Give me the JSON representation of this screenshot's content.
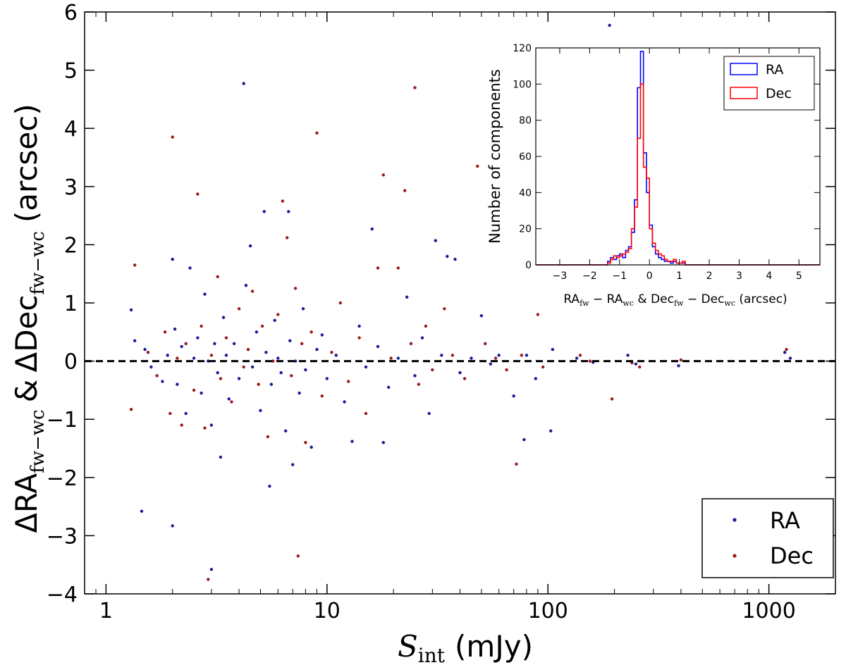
{
  "chart_data": [
    {
      "type": "scatter",
      "name": "main-scatter",
      "xscale": "log",
      "xlim": [
        0.8,
        2000
      ],
      "ylim": [
        -4,
        6
      ],
      "xticks": [
        1,
        10,
        100,
        1000
      ],
      "xtick_labels": [
        "1",
        "10",
        "100",
        "1000"
      ],
      "yticks": [
        -4,
        -3,
        -2,
        -1,
        0,
        1,
        2,
        3,
        4,
        5,
        6
      ],
      "ytick_labels": [
        "−4",
        "−3",
        "−2",
        "−1",
        "0",
        "1",
        "2",
        "3",
        "4",
        "5",
        "6"
      ],
      "xlabel_symbol": "S",
      "xlabel_sub": "int",
      "xlabel_unit": "(mJy)",
      "ylabel_ra": "ΔRA",
      "ylabel_dec": "ΔDec",
      "ylabel_sub": "fw−wc",
      "ylabel_amp": "&",
      "ylabel_unit": "(arcsec)",
      "reference_line_y": 0,
      "legend_position": "bottom-right",
      "legend": [
        "RA",
        "Dec"
      ],
      "series": [
        {
          "name": "RA",
          "color": "#1a1a99",
          "points": [
            [
              1.3,
              0.88
            ],
            [
              1.35,
              0.35
            ],
            [
              1.45,
              -2.58
            ],
            [
              1.5,
              0.2
            ],
            [
              1.6,
              -0.1
            ],
            [
              1.8,
              -0.35
            ],
            [
              1.9,
              0.1
            ],
            [
              2.0,
              -2.83
            ],
            [
              2.0,
              1.75
            ],
            [
              2.05,
              0.55
            ],
            [
              2.1,
              -0.4
            ],
            [
              2.2,
              0.25
            ],
            [
              2.3,
              -0.9
            ],
            [
              2.4,
              1.6
            ],
            [
              2.5,
              0.05
            ],
            [
              2.6,
              0.4
            ],
            [
              2.7,
              -0.55
            ],
            [
              2.8,
              1.15
            ],
            [
              2.9,
              0.0
            ],
            [
              3.0,
              -1.1
            ],
            [
              3.0,
              -3.58
            ],
            [
              3.1,
              0.3
            ],
            [
              3.2,
              -0.2
            ],
            [
              3.3,
              -1.65
            ],
            [
              3.4,
              0.75
            ],
            [
              3.5,
              0.1
            ],
            [
              3.6,
              -0.65
            ],
            [
              3.8,
              0.3
            ],
            [
              4.0,
              -0.3
            ],
            [
              4.2,
              4.77
            ],
            [
              4.3,
              1.3
            ],
            [
              4.5,
              1.98
            ],
            [
              4.6,
              -0.1
            ],
            [
              4.8,
              0.5
            ],
            [
              5.0,
              -0.85
            ],
            [
              5.2,
              2.57
            ],
            [
              5.3,
              0.15
            ],
            [
              5.5,
              -2.15
            ],
            [
              5.6,
              -0.4
            ],
            [
              5.8,
              0.7
            ],
            [
              6.0,
              0.05
            ],
            [
              6.2,
              -0.2
            ],
            [
              6.5,
              -1.2
            ],
            [
              6.7,
              2.57
            ],
            [
              6.8,
              0.35
            ],
            [
              7.0,
              -1.78
            ],
            [
              7.2,
              0.0
            ],
            [
              7.5,
              -0.55
            ],
            [
              7.8,
              0.9
            ],
            [
              8.0,
              -0.15
            ],
            [
              8.5,
              -1.48
            ],
            [
              9.0,
              0.2
            ],
            [
              9.5,
              0.45
            ],
            [
              10.0,
              -0.3
            ],
            [
              11.0,
              0.1
            ],
            [
              12.0,
              -0.7
            ],
            [
              13.0,
              -1.38
            ],
            [
              14.0,
              0.6
            ],
            [
              15.0,
              -0.1
            ],
            [
              16.0,
              2.27
            ],
            [
              17.0,
              0.25
            ],
            [
              18.0,
              -1.4
            ],
            [
              19.0,
              -0.45
            ],
            [
              21.0,
              0.05
            ],
            [
              23.0,
              1.1
            ],
            [
              25.0,
              -0.25
            ],
            [
              27.0,
              0.4
            ],
            [
              29.0,
              -0.9
            ],
            [
              31.0,
              2.07
            ],
            [
              33.0,
              0.1
            ],
            [
              35.0,
              1.8
            ],
            [
              38.0,
              1.75
            ],
            [
              40.0,
              -0.2
            ],
            [
              45.0,
              0.05
            ],
            [
              50.0,
              0.78
            ],
            [
              55.0,
              -0.05
            ],
            [
              60.0,
              0.1
            ],
            [
              70.0,
              -0.6
            ],
            [
              78.0,
              -1.35
            ],
            [
              80.0,
              0.1
            ],
            [
              88.0,
              -0.3
            ],
            [
              103.0,
              -1.2
            ],
            [
              105.0,
              0.2
            ],
            [
              135.0,
              0.05
            ],
            [
              160.0,
              -0.02
            ],
            [
              190.0,
              5.77
            ],
            [
              230.0,
              0.1
            ],
            [
              250.0,
              -0.05
            ],
            [
              390.0,
              -0.08
            ],
            [
              1180.0,
              0.15
            ],
            [
              1250.0,
              0.05
            ]
          ]
        },
        {
          "name": "Dec",
          "color": "#991a1a",
          "points": [
            [
              1.3,
              -0.83
            ],
            [
              1.35,
              1.65
            ],
            [
              1.55,
              0.15
            ],
            [
              1.7,
              -0.25
            ],
            [
              1.85,
              0.5
            ],
            [
              1.95,
              -0.9
            ],
            [
              2.0,
              3.85
            ],
            [
              2.1,
              0.05
            ],
            [
              2.2,
              -1.1
            ],
            [
              2.3,
              0.3
            ],
            [
              2.5,
              -0.5
            ],
            [
              2.6,
              2.87
            ],
            [
              2.7,
              0.6
            ],
            [
              2.8,
              -1.15
            ],
            [
              2.9,
              -3.75
            ],
            [
              3.0,
              0.1
            ],
            [
              3.2,
              1.45
            ],
            [
              3.3,
              -0.3
            ],
            [
              3.5,
              0.4
            ],
            [
              3.7,
              -0.7
            ],
            [
              4.0,
              0.9
            ],
            [
              4.2,
              -0.1
            ],
            [
              4.4,
              0.2
            ],
            [
              4.6,
              1.2
            ],
            [
              4.9,
              -0.4
            ],
            [
              5.1,
              0.6
            ],
            [
              5.4,
              -1.3
            ],
            [
              5.7,
              0.0
            ],
            [
              6.0,
              0.8
            ],
            [
              6.3,
              2.75
            ],
            [
              6.6,
              2.12
            ],
            [
              6.9,
              -0.25
            ],
            [
              7.2,
              1.25
            ],
            [
              7.4,
              -3.35
            ],
            [
              7.7,
              0.3
            ],
            [
              8.0,
              -1.4
            ],
            [
              8.5,
              0.5
            ],
            [
              9.0,
              3.92
            ],
            [
              9.5,
              -0.6
            ],
            [
              10.5,
              0.15
            ],
            [
              11.5,
              1.0
            ],
            [
              12.5,
              -0.35
            ],
            [
              14.0,
              0.4
            ],
            [
              15.0,
              -0.9
            ],
            [
              17.0,
              1.6
            ],
            [
              18.0,
              3.2
            ],
            [
              19.5,
              0.05
            ],
            [
              21.0,
              1.6
            ],
            [
              22.5,
              2.93
            ],
            [
              24.0,
              0.3
            ],
            [
              25.0,
              4.7
            ],
            [
              26.0,
              -0.4
            ],
            [
              28.0,
              0.6
            ],
            [
              30.0,
              -0.15
            ],
            [
              34.0,
              0.9
            ],
            [
              37.0,
              0.1
            ],
            [
              42.0,
              -0.3
            ],
            [
              48.0,
              3.35
            ],
            [
              52.0,
              0.3
            ],
            [
              58.0,
              0.05
            ],
            [
              65.0,
              -0.15
            ],
            [
              72.0,
              -1.77
            ],
            [
              76.0,
              0.1
            ],
            [
              90.0,
              0.8
            ],
            [
              95.0,
              -0.1
            ],
            [
              140.0,
              0.1
            ],
            [
              155.0,
              0.0
            ],
            [
              195.0,
              -0.65
            ],
            [
              240.0,
              -0.03
            ],
            [
              260.0,
              -0.1
            ],
            [
              400.0,
              0.02
            ],
            [
              1200.0,
              0.2
            ]
          ]
        }
      ]
    },
    {
      "type": "histogram",
      "name": "inset-histogram",
      "xlim": [
        -3.8,
        5.7
      ],
      "ylim": [
        0,
        120
      ],
      "xticks": [
        -3,
        -2,
        -1,
        0,
        1,
        2,
        3,
        4,
        5
      ],
      "xtick_labels": [
        "−3",
        "−2",
        "−1",
        "0",
        "1",
        "2",
        "3",
        "4",
        "5"
      ],
      "yticks": [
        0,
        20,
        40,
        60,
        80,
        100,
        120
      ],
      "ytick_labels": [
        "0",
        "20",
        "40",
        "60",
        "80",
        "100",
        "120"
      ],
      "ylabel": "Number of components",
      "xlabel_parts": [
        "RA",
        "fw",
        " − RA",
        "wc",
        " & Dec",
        "fw",
        " − Dec",
        "wc",
        " (arcsec)"
      ],
      "legend_position": "top-right",
      "legend": [
        "RA",
        "Dec"
      ],
      "bin_start": -1.4,
      "bin_width": 0.1,
      "series": [
        {
          "name": "RA",
          "color": "#0000ff",
          "counts": [
            2,
            4,
            3,
            5,
            6,
            4,
            8,
            10,
            18,
            36,
            98,
            118,
            62,
            40,
            22,
            10,
            6,
            4,
            3,
            2,
            2,
            1,
            2,
            1,
            1,
            1
          ]
        },
        {
          "name": "Dec",
          "color": "#ff0000",
          "counts": [
            1,
            3,
            5,
            4,
            5,
            6,
            7,
            9,
            20,
            32,
            70,
            100,
            54,
            48,
            20,
            12,
            8,
            6,
            5,
            3,
            2,
            2,
            3,
            1,
            1,
            2
          ]
        }
      ]
    }
  ]
}
